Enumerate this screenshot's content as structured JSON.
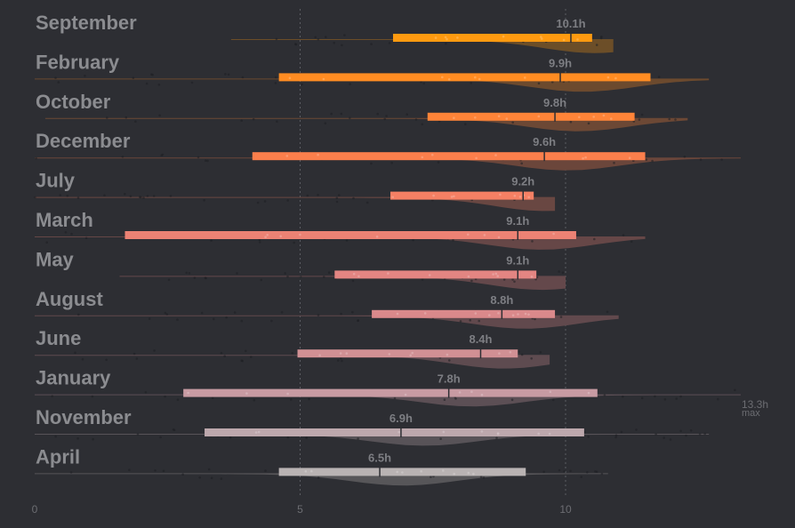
{
  "chart_data": {
    "type": "raincloud",
    "title": "",
    "xlabel": "",
    "ylabel": "",
    "xlim": [
      0,
      14.3
    ],
    "x_ticks": [
      {
        "value": 0,
        "label": "0"
      },
      {
        "value": 5,
        "label": "5"
      },
      {
        "value": 10,
        "label": "10"
      }
    ],
    "grid": "vertical dotted at 5 and 10",
    "median_suffix": "h",
    "max_annotation": {
      "value": 13.3,
      "label": "13.3h",
      "sublabel": "max"
    },
    "rows": [
      {
        "month": "September",
        "median": 10.1,
        "q1": 6.75,
        "q3": 10.5,
        "min": 3.7,
        "max": 10.9,
        "color": "#ff9a10"
      },
      {
        "month": "February",
        "median": 9.9,
        "q1": 4.6,
        "q3": 11.6,
        "min": 0,
        "max": 12.7,
        "color": "#ff8c22"
      },
      {
        "month": "October",
        "median": 9.8,
        "q1": 7.4,
        "q3": 11.3,
        "min": 0.2,
        "max": 12.3,
        "color": "#ff8438"
      },
      {
        "month": "December",
        "median": 9.6,
        "q1": 4.1,
        "q3": 11.5,
        "min": 0,
        "max": 13.3,
        "color": "#fb7f4c"
      },
      {
        "month": "July",
        "median": 9.2,
        "q1": 6.7,
        "q3": 9.4,
        "min": 0,
        "max": 9.8,
        "color": "#f58064"
      },
      {
        "month": "March",
        "median": 9.1,
        "q1": 1.7,
        "q3": 10.2,
        "min": 0,
        "max": 11.5,
        "color": "#ec8274"
      },
      {
        "month": "May",
        "median": 9.1,
        "q1": 5.65,
        "q3": 9.45,
        "min": 1.6,
        "max": 10.0,
        "color": "#e38582"
      },
      {
        "month": "August",
        "median": 8.8,
        "q1": 6.35,
        "q3": 9.8,
        "min": 0,
        "max": 11.0,
        "color": "#da898b"
      },
      {
        "month": "June",
        "median": 8.4,
        "q1": 4.95,
        "q3": 9.1,
        "min": 0,
        "max": 9.7,
        "color": "#d19094"
      },
      {
        "month": "January",
        "median": 7.8,
        "q1": 2.8,
        "q3": 10.6,
        "min": 0,
        "max": 13.3,
        "color": "#c89ba3"
      },
      {
        "month": "November",
        "median": 6.9,
        "q1": 3.2,
        "q3": 10.35,
        "min": 0,
        "max": 12.7,
        "color": "#bda8ad"
      },
      {
        "month": "April",
        "median": 6.5,
        "q1": 4.6,
        "q3": 9.25,
        "min": 0,
        "max": 10.8,
        "color": "#b9b3b3"
      }
    ]
  }
}
